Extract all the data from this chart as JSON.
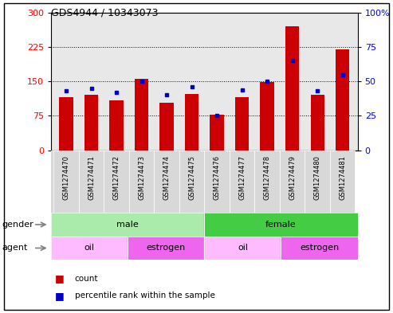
{
  "title": "GDS4944 / 10343073",
  "samples": [
    "GSM1274470",
    "GSM1274471",
    "GSM1274472",
    "GSM1274473",
    "GSM1274474",
    "GSM1274475",
    "GSM1274476",
    "GSM1274477",
    "GSM1274478",
    "GSM1274479",
    "GSM1274480",
    "GSM1274481"
  ],
  "counts": [
    115,
    120,
    108,
    155,
    103,
    122,
    77,
    115,
    148,
    270,
    120,
    220
  ],
  "percentile": [
    43,
    45,
    42,
    50,
    40,
    46,
    25,
    44,
    50,
    65,
    43,
    55
  ],
  "left_ylim": [
    0,
    300
  ],
  "right_ylim": [
    0,
    100
  ],
  "left_yticks": [
    0,
    75,
    150,
    225,
    300
  ],
  "right_yticks": [
    0,
    25,
    50,
    75,
    100
  ],
  "right_yticklabels": [
    "0",
    "25",
    "50",
    "75",
    "100%"
  ],
  "bar_color": "#cc0000",
  "blue_color": "#0000cc",
  "plot_bg": "#e8e8e8",
  "gender_groups": [
    {
      "label": "male",
      "start": 0,
      "end": 6,
      "color": "#aaeaaa"
    },
    {
      "label": "female",
      "start": 6,
      "end": 12,
      "color": "#44cc44"
    }
  ],
  "agent_groups": [
    {
      "label": "oil",
      "start": 0,
      "end": 3,
      "color": "#ffbbff"
    },
    {
      "label": "estrogen",
      "start": 3,
      "end": 6,
      "color": "#ee66ee"
    },
    {
      "label": "oil",
      "start": 6,
      "end": 9,
      "color": "#ffbbff"
    },
    {
      "label": "estrogen",
      "start": 9,
      "end": 12,
      "color": "#ee66ee"
    }
  ],
  "legend_items": [
    {
      "label": "count",
      "color": "#cc0000"
    },
    {
      "label": "percentile rank within the sample",
      "color": "#0000cc"
    }
  ]
}
